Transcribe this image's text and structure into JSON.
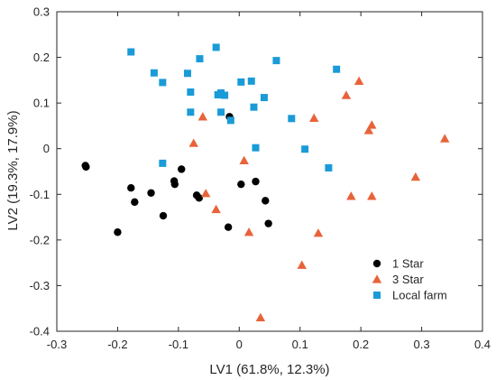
{
  "chart_data": {
    "type": "scatter",
    "xlabel": "LV1 (61.8%, 12.3%)",
    "ylabel": "LV2 (19.3%, 17.9%)",
    "xlim": [
      -0.3,
      0.4
    ],
    "ylim": [
      -0.4,
      0.3
    ],
    "x_ticks": [
      "-0.3",
      "-0.2",
      "-0.1",
      "0",
      "0.1",
      "0.2",
      "0.3",
      "0.4"
    ],
    "y_ticks": [
      "-0.4",
      "-0.3",
      "-0.2",
      "-0.1",
      "0",
      "0.1",
      "0.2",
      "0.3"
    ],
    "grid": false,
    "legend_position": "bottom-right",
    "series": [
      {
        "name": "1 Star",
        "marker": "circle",
        "color": "#000000",
        "points": [
          [
            -0.253,
            -0.037
          ],
          [
            -0.252,
            -0.04
          ],
          [
            -0.2,
            -0.183
          ],
          [
            -0.178,
            -0.086
          ],
          [
            -0.172,
            -0.117
          ],
          [
            -0.145,
            -0.097
          ],
          [
            -0.125,
            -0.147
          ],
          [
            -0.107,
            -0.071
          ],
          [
            -0.106,
            -0.078
          ],
          [
            -0.095,
            -0.045
          ],
          [
            -0.07,
            -0.102
          ],
          [
            -0.066,
            -0.108
          ],
          [
            -0.016,
            0.07
          ],
          [
            -0.018,
            -0.172
          ],
          [
            0.003,
            -0.078
          ],
          [
            0.027,
            -0.072
          ],
          [
            0.043,
            -0.114
          ],
          [
            0.048,
            -0.164
          ]
        ]
      },
      {
        "name": "3 Star",
        "marker": "triangle",
        "color": "#e8633a",
        "points": [
          [
            -0.075,
            0.012
          ],
          [
            -0.06,
            0.07
          ],
          [
            -0.055,
            -0.098
          ],
          [
            -0.038,
            -0.133
          ],
          [
            0.008,
            -0.026
          ],
          [
            0.016,
            -0.183
          ],
          [
            0.035,
            -0.37
          ],
          [
            0.103,
            -0.255
          ],
          [
            0.123,
            0.067
          ],
          [
            0.13,
            -0.185
          ],
          [
            0.176,
            0.117
          ],
          [
            0.184,
            -0.104
          ],
          [
            0.197,
            0.148
          ],
          [
            0.213,
            0.04
          ],
          [
            0.218,
            0.052
          ],
          [
            0.218,
            -0.104
          ],
          [
            0.29,
            -0.062
          ],
          [
            0.338,
            0.022
          ]
        ]
      },
      {
        "name": "Local farm",
        "marker": "square",
        "color": "#1a9bd7",
        "points": [
          [
            -0.178,
            0.212
          ],
          [
            -0.14,
            0.166
          ],
          [
            -0.126,
            0.145
          ],
          [
            -0.126,
            -0.032
          ],
          [
            -0.085,
            0.165
          ],
          [
            -0.08,
            0.124
          ],
          [
            -0.08,
            0.08
          ],
          [
            -0.065,
            0.197
          ],
          [
            -0.038,
            0.222
          ],
          [
            -0.035,
            0.118
          ],
          [
            -0.03,
            0.122
          ],
          [
            -0.03,
            0.08
          ],
          [
            -0.024,
            0.117
          ],
          [
            -0.014,
            0.062
          ],
          [
            0.003,
            0.146
          ],
          [
            0.02,
            0.148
          ],
          [
            0.024,
            0.091
          ],
          [
            0.027,
            0.002
          ],
          [
            0.041,
            0.112
          ],
          [
            0.061,
            0.193
          ],
          [
            0.086,
            0.066
          ],
          [
            0.108,
            -0.001
          ],
          [
            0.147,
            -0.042
          ],
          [
            0.16,
            0.174
          ]
        ]
      }
    ]
  }
}
